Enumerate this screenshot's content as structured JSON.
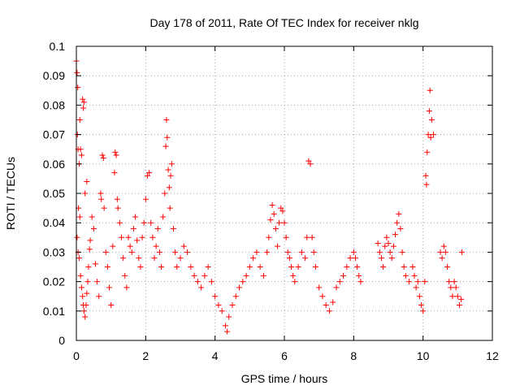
{
  "chart_data": {
    "type": "scatter",
    "title": "Day 178 of 2011, Rate Of TEC Index for receiver nklg",
    "xlabel": "GPS time / hours",
    "ylabel": "ROTI / TECUs",
    "xlim": [
      0,
      12
    ],
    "ylim": [
      0,
      0.1
    ],
    "xticks": [
      "0",
      "2",
      "4",
      "6",
      "8",
      "10",
      "12"
    ],
    "yticks": [
      "0",
      "0.01",
      "0.02",
      "0.03",
      "0.04",
      "0.05",
      "0.06",
      "0.07",
      "0.08",
      "0.09",
      "0.1"
    ],
    "grid": true,
    "marker": "+",
    "color": "#ff0000",
    "series": [
      {
        "name": "ROTI",
        "points": [
          [
            0.0,
            0.095
          ],
          [
            0.02,
            0.091
          ],
          [
            0.04,
            0.086
          ],
          [
            0.03,
            0.07
          ],
          [
            0.05,
            0.065
          ],
          [
            0.08,
            0.06
          ],
          [
            0.1,
            0.075
          ],
          [
            0.12,
            0.065
          ],
          [
            0.18,
            0.082
          ],
          [
            0.2,
            0.079
          ],
          [
            0.22,
            0.081
          ],
          [
            0.15,
            0.063
          ],
          [
            0.25,
            0.05
          ],
          [
            0.3,
            0.054
          ],
          [
            0.06,
            0.045
          ],
          [
            0.1,
            0.042
          ],
          [
            0.02,
            0.035
          ],
          [
            0.05,
            0.03
          ],
          [
            0.08,
            0.028
          ],
          [
            0.12,
            0.022
          ],
          [
            0.15,
            0.018
          ],
          [
            0.18,
            0.015
          ],
          [
            0.2,
            0.012
          ],
          [
            0.22,
            0.01
          ],
          [
            0.25,
            0.008
          ],
          [
            0.28,
            0.012
          ],
          [
            0.3,
            0.016
          ],
          [
            0.33,
            0.02
          ],
          [
            0.35,
            0.025
          ],
          [
            0.38,
            0.031
          ],
          [
            0.4,
            0.034
          ],
          [
            0.45,
            0.042
          ],
          [
            0.5,
            0.038
          ],
          [
            0.55,
            0.026
          ],
          [
            0.6,
            0.02
          ],
          [
            0.65,
            0.015
          ],
          [
            0.7,
            0.05
          ],
          [
            0.72,
            0.048
          ],
          [
            0.75,
            0.063
          ],
          [
            0.78,
            0.062
          ],
          [
            0.8,
            0.045
          ],
          [
            0.85,
            0.03
          ],
          [
            0.9,
            0.025
          ],
          [
            0.95,
            0.018
          ],
          [
            1.0,
            0.012
          ],
          [
            1.05,
            0.032
          ],
          [
            1.1,
            0.057
          ],
          [
            1.12,
            0.064
          ],
          [
            1.15,
            0.063
          ],
          [
            1.18,
            0.048
          ],
          [
            1.2,
            0.045
          ],
          [
            1.25,
            0.04
          ],
          [
            1.3,
            0.035
          ],
          [
            1.35,
            0.028
          ],
          [
            1.4,
            0.022
          ],
          [
            1.45,
            0.018
          ],
          [
            1.5,
            0.035
          ],
          [
            1.55,
            0.032
          ],
          [
            1.6,
            0.03
          ],
          [
            1.65,
            0.038
          ],
          [
            1.7,
            0.042
          ],
          [
            1.75,
            0.034
          ],
          [
            1.8,
            0.028
          ],
          [
            1.85,
            0.025
          ],
          [
            1.9,
            0.035
          ],
          [
            1.95,
            0.04
          ],
          [
            2.0,
            0.048
          ],
          [
            2.05,
            0.056
          ],
          [
            2.1,
            0.057
          ],
          [
            2.15,
            0.04
          ],
          [
            2.2,
            0.035
          ],
          [
            2.25,
            0.028
          ],
          [
            2.3,
            0.032
          ],
          [
            2.35,
            0.038
          ],
          [
            2.4,
            0.03
          ],
          [
            2.45,
            0.025
          ],
          [
            2.5,
            0.042
          ],
          [
            2.55,
            0.05
          ],
          [
            2.58,
            0.066
          ],
          [
            2.6,
            0.075
          ],
          [
            2.62,
            0.069
          ],
          [
            2.65,
            0.058
          ],
          [
            2.68,
            0.052
          ],
          [
            2.7,
            0.045
          ],
          [
            2.72,
            0.056
          ],
          [
            2.75,
            0.06
          ],
          [
            2.8,
            0.038
          ],
          [
            2.85,
            0.03
          ],
          [
            2.9,
            0.025
          ],
          [
            3.0,
            0.028
          ],
          [
            3.1,
            0.032
          ],
          [
            3.2,
            0.03
          ],
          [
            3.3,
            0.025
          ],
          [
            3.4,
            0.022
          ],
          [
            3.5,
            0.02
          ],
          [
            3.6,
            0.018
          ],
          [
            3.7,
            0.022
          ],
          [
            3.8,
            0.025
          ],
          [
            3.9,
            0.02
          ],
          [
            4.0,
            0.015
          ],
          [
            4.1,
            0.012
          ],
          [
            4.2,
            0.01
          ],
          [
            4.3,
            0.005
          ],
          [
            4.35,
            0.003
          ],
          [
            4.4,
            0.008
          ],
          [
            4.5,
            0.012
          ],
          [
            4.6,
            0.015
          ],
          [
            4.7,
            0.018
          ],
          [
            4.8,
            0.02
          ],
          [
            4.9,
            0.022
          ],
          [
            5.0,
            0.025
          ],
          [
            5.1,
            0.028
          ],
          [
            5.2,
            0.03
          ],
          [
            5.3,
            0.025
          ],
          [
            5.4,
            0.022
          ],
          [
            5.5,
            0.03
          ],
          [
            5.55,
            0.035
          ],
          [
            5.6,
            0.041
          ],
          [
            5.65,
            0.046
          ],
          [
            5.7,
            0.043
          ],
          [
            5.75,
            0.038
          ],
          [
            5.8,
            0.032
          ],
          [
            5.85,
            0.04
          ],
          [
            5.9,
            0.045
          ],
          [
            5.95,
            0.044
          ],
          [
            6.0,
            0.04
          ],
          [
            6.05,
            0.035
          ],
          [
            6.1,
            0.03
          ],
          [
            6.15,
            0.028
          ],
          [
            6.2,
            0.025
          ],
          [
            6.25,
            0.022
          ],
          [
            6.3,
            0.02
          ],
          [
            6.4,
            0.025
          ],
          [
            6.5,
            0.03
          ],
          [
            6.6,
            0.028
          ],
          [
            6.65,
            0.035
          ],
          [
            6.7,
            0.061
          ],
          [
            6.75,
            0.06
          ],
          [
            6.8,
            0.035
          ],
          [
            6.85,
            0.03
          ],
          [
            6.9,
            0.025
          ],
          [
            7.0,
            0.018
          ],
          [
            7.1,
            0.015
          ],
          [
            7.2,
            0.012
          ],
          [
            7.3,
            0.01
          ],
          [
            7.4,
            0.013
          ],
          [
            7.5,
            0.018
          ],
          [
            7.6,
            0.02
          ],
          [
            7.7,
            0.022
          ],
          [
            7.8,
            0.025
          ],
          [
            7.9,
            0.028
          ],
          [
            8.0,
            0.03
          ],
          [
            8.05,
            0.028
          ],
          [
            8.1,
            0.025
          ],
          [
            8.15,
            0.022
          ],
          [
            8.2,
            0.02
          ],
          [
            8.7,
            0.033
          ],
          [
            8.75,
            0.03
          ],
          [
            8.8,
            0.028
          ],
          [
            8.85,
            0.025
          ],
          [
            8.9,
            0.032
          ],
          [
            8.95,
            0.035
          ],
          [
            9.0,
            0.033
          ],
          [
            9.05,
            0.03
          ],
          [
            9.1,
            0.028
          ],
          [
            9.15,
            0.032
          ],
          [
            9.2,
            0.036
          ],
          [
            9.25,
            0.04
          ],
          [
            9.3,
            0.043
          ],
          [
            9.35,
            0.038
          ],
          [
            9.4,
            0.03
          ],
          [
            9.45,
            0.025
          ],
          [
            9.5,
            0.022
          ],
          [
            9.6,
            0.02
          ],
          [
            9.7,
            0.025
          ],
          [
            9.75,
            0.022
          ],
          [
            9.8,
            0.018
          ],
          [
            9.85,
            0.02
          ],
          [
            9.9,
            0.015
          ],
          [
            9.95,
            0.012
          ],
          [
            10.0,
            0.01
          ],
          [
            10.05,
            0.02
          ],
          [
            10.08,
            0.056
          ],
          [
            10.1,
            0.053
          ],
          [
            10.12,
            0.064
          ],
          [
            10.15,
            0.07
          ],
          [
            10.18,
            0.078
          ],
          [
            10.2,
            0.085
          ],
          [
            10.22,
            0.069
          ],
          [
            10.25,
            0.075
          ],
          [
            10.3,
            0.07
          ],
          [
            10.5,
            0.03
          ],
          [
            10.55,
            0.028
          ],
          [
            10.6,
            0.032
          ],
          [
            10.65,
            0.03
          ],
          [
            10.7,
            0.025
          ],
          [
            10.75,
            0.02
          ],
          [
            10.8,
            0.018
          ],
          [
            10.85,
            0.015
          ],
          [
            10.9,
            0.02
          ],
          [
            10.95,
            0.018
          ],
          [
            11.0,
            0.015
          ],
          [
            11.05,
            0.012
          ],
          [
            11.1,
            0.014
          ],
          [
            11.12,
            0.03
          ]
        ]
      }
    ]
  }
}
